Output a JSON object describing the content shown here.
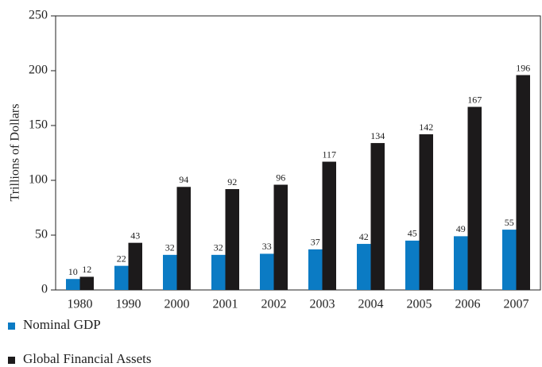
{
  "chart_data": {
    "type": "bar",
    "ylabel": "Trillions of Dollars",
    "categories": [
      "1980",
      "1990",
      "2000",
      "2001",
      "2002",
      "2003",
      "2004",
      "2005",
      "2006",
      "2007"
    ],
    "series": [
      {
        "name": "Nominal GDP",
        "color": "#0b7bc4",
        "values": [
          10,
          22,
          32,
          32,
          33,
          37,
          42,
          45,
          49,
          55
        ]
      },
      {
        "name": "Global Financial Assets",
        "color": "#1c1a1b",
        "values": [
          12,
          43,
          94,
          92,
          96,
          117,
          134,
          142,
          167,
          196
        ]
      }
    ],
    "ylim": [
      0,
      250
    ],
    "yticks": [
      0,
      50,
      100,
      150,
      200,
      250
    ],
    "legend": "bottom-left"
  }
}
